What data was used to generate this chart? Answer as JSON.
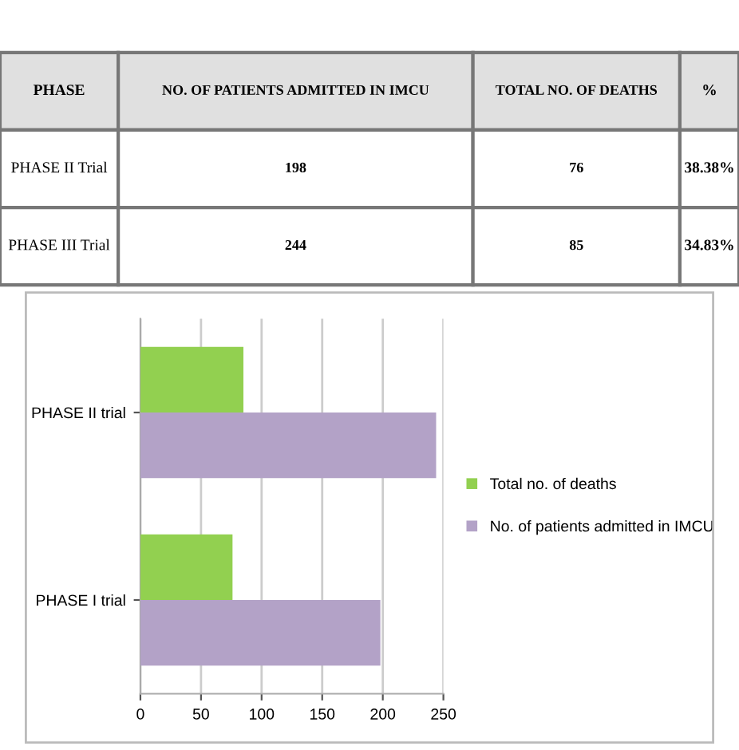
{
  "chart_data": {
    "type": "bar",
    "orientation": "horizontal",
    "categories": [
      "PHASE II trial",
      "PHASE I trial"
    ],
    "series": [
      {
        "name": "Total no. of deaths",
        "color": "#92d050",
        "values": [
          85,
          76
        ]
      },
      {
        "name": "No. of patients admitted in IMCU",
        "color": "#b3a2c7",
        "values": [
          244,
          198
        ]
      }
    ],
    "xlim": [
      0,
      250
    ],
    "xticks": [
      0,
      50,
      100,
      150,
      200,
      250
    ],
    "grid": "x",
    "legend": "right",
    "annotations": [
      "PHASE",
      "NO. OF PATIENTS ADMITTED IN IMCU",
      "TOTAL NO. OF DEATHS",
      "%",
      "PHASE II Trial",
      "198",
      "76",
      "38.38%",
      "PHASE III Trial",
      "244",
      "85",
      "34.83%"
    ]
  }
}
